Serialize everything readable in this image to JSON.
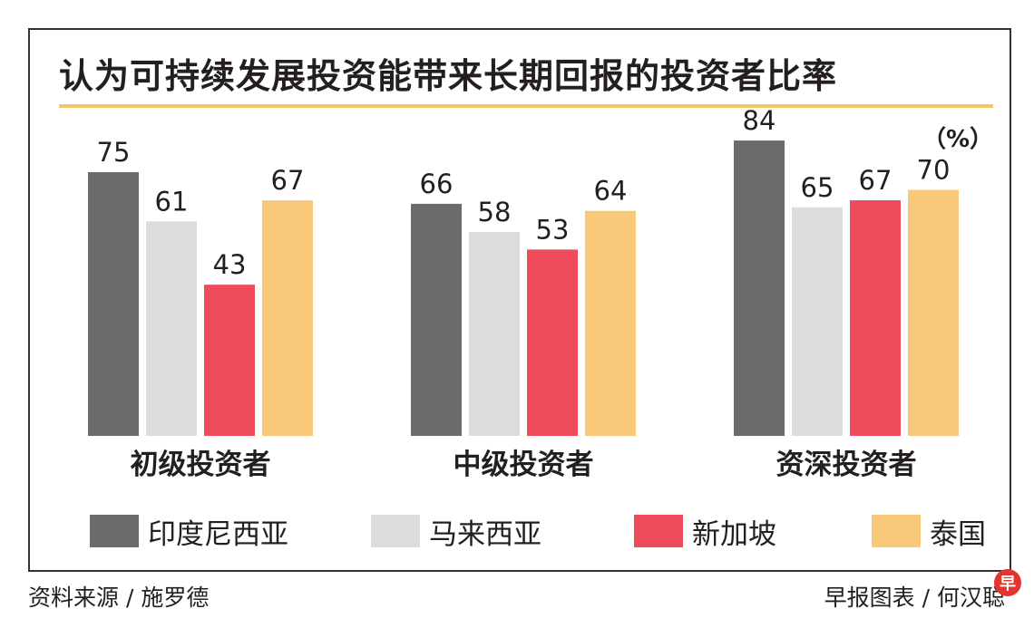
{
  "header": {
    "title": "认为可持续发展投资能带来长期回报的投资者比率",
    "unit": "（%）"
  },
  "colors": {
    "title_rule": "#f5c766",
    "frame": "#333333",
    "logo": "#e3342f"
  },
  "chart_data": {
    "type": "bar",
    "title": "认为可持续发展投资能带来长期回报的投资者比率",
    "categories": [
      "初级投资者",
      "中级投资者",
      "资深投资者"
    ],
    "ylabel": "（%）",
    "ylim": [
      0,
      100
    ],
    "grid": false,
    "legend_position": "bottom",
    "series": [
      {
        "name": "印度尼西亚",
        "color": "#6b6b6b",
        "values": [
          75,
          66,
          84
        ]
      },
      {
        "name": "马来西亚",
        "color": "#dcdcdd",
        "values": [
          61,
          58,
          65
        ]
      },
      {
        "name": "新加坡",
        "color": "#ef4a5a",
        "values": [
          43,
          53,
          67
        ]
      },
      {
        "name": "泰国",
        "color": "#f9c97a",
        "values": [
          67,
          64,
          70
        ]
      }
    ]
  },
  "legend": {
    "items": [
      "印度尼西亚",
      "马来西亚",
      "新加坡",
      "泰国"
    ]
  },
  "footer": {
    "source": "资料来源 / 施罗德",
    "credit": "早报图表 / 何汉聪",
    "logo_char": "早"
  }
}
